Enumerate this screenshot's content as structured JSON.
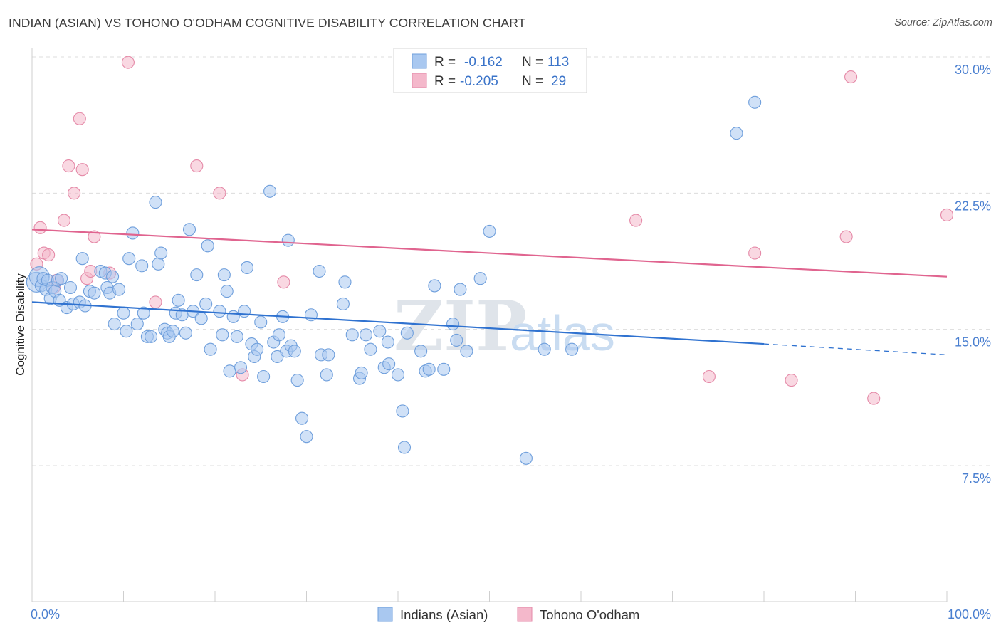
{
  "header": {
    "title": "INDIAN (ASIAN) VS TOHONO O'ODHAM COGNITIVE DISABILITY CORRELATION CHART",
    "source": "Source: ZipAtlas.com"
  },
  "watermark": {
    "zip": "ZIP",
    "atlas": "atlas"
  },
  "legend": {
    "r_label": "R =",
    "n_label": "N =",
    "rows": [
      {
        "r": "-0.162",
        "n": "113",
        "color": "#a9c8f0"
      },
      {
        "r": "-0.205",
        "n": "29",
        "color": "#f4b8cb"
      }
    ]
  },
  "colors": {
    "blue_fill": "#a9c8f0",
    "blue_stroke": "#6f9fdc",
    "blue_line": "#2f72d0",
    "pink_fill": "#f4b8cb",
    "pink_stroke": "#e58aa8",
    "pink_line": "#e0648f",
    "grid": "#dcdcdc",
    "axis_text": "#4a7fd0"
  },
  "chart_data": {
    "type": "scatter",
    "title": "INDIAN (ASIAN) VS TOHONO O'ODHAM COGNITIVE DISABILITY CORRELATION CHART",
    "xlabel": "",
    "ylabel": "Cognitive Disability",
    "xlim": [
      0,
      100
    ],
    "ylim": [
      0,
      31
    ],
    "x_tick_labels": [
      "0.0%",
      "100.0%"
    ],
    "y_ticks": [
      7.5,
      15.0,
      22.5,
      30.0
    ],
    "y_tick_labels": [
      "7.5%",
      "15.0%",
      "22.5%",
      "30.0%"
    ],
    "grid": true,
    "legend_position": "top-center",
    "series": [
      {
        "name": "Indians (Asian)",
        "r": -0.162,
        "n": 113,
        "trend": {
          "x": [
            0,
            80
          ],
          "y": [
            16.5,
            14.2
          ],
          "dashed_to": [
            100,
            13.6
          ]
        },
        "points": [
          [
            0.5,
            17.6
          ],
          [
            0.8,
            17.9
          ],
          [
            1.0,
            17.4
          ],
          [
            1.2,
            17.8
          ],
          [
            1.5,
            17.2
          ],
          [
            1.7,
            17.7
          ],
          [
            2.0,
            16.7
          ],
          [
            2.2,
            17.3
          ],
          [
            2.5,
            17.1
          ],
          [
            2.8,
            17.7
          ],
          [
            3.0,
            16.6
          ],
          [
            3.2,
            17.8
          ],
          [
            3.8,
            16.2
          ],
          [
            4.2,
            17.3
          ],
          [
            4.5,
            16.4
          ],
          [
            5.2,
            16.5
          ],
          [
            5.5,
            18.9
          ],
          [
            5.8,
            16.3
          ],
          [
            6.3,
            17.1
          ],
          [
            6.8,
            17.0
          ],
          [
            7.5,
            18.2
          ],
          [
            8.0,
            18.1
          ],
          [
            8.2,
            17.3
          ],
          [
            8.5,
            17.0
          ],
          [
            8.8,
            17.9
          ],
          [
            9.0,
            15.3
          ],
          [
            9.5,
            17.2
          ],
          [
            10.0,
            15.9
          ],
          [
            10.3,
            14.9
          ],
          [
            10.6,
            18.9
          ],
          [
            11.0,
            20.3
          ],
          [
            11.5,
            15.3
          ],
          [
            12.0,
            18.5
          ],
          [
            12.2,
            15.9
          ],
          [
            12.6,
            14.6
          ],
          [
            13.0,
            14.6
          ],
          [
            13.5,
            22.0
          ],
          [
            13.8,
            18.6
          ],
          [
            14.1,
            19.2
          ],
          [
            14.5,
            15.0
          ],
          [
            14.8,
            14.8
          ],
          [
            15.0,
            14.6
          ],
          [
            15.4,
            14.9
          ],
          [
            15.7,
            15.9
          ],
          [
            16.0,
            16.6
          ],
          [
            16.4,
            15.8
          ],
          [
            16.8,
            14.8
          ],
          [
            17.2,
            20.5
          ],
          [
            17.6,
            16.0
          ],
          [
            18.0,
            18.0
          ],
          [
            18.5,
            15.6
          ],
          [
            19.0,
            16.4
          ],
          [
            19.2,
            19.6
          ],
          [
            19.5,
            13.9
          ],
          [
            20.5,
            16.0
          ],
          [
            20.8,
            14.7
          ],
          [
            21.0,
            18.0
          ],
          [
            21.3,
            17.1
          ],
          [
            21.6,
            12.7
          ],
          [
            22.0,
            15.7
          ],
          [
            22.4,
            14.6
          ],
          [
            22.8,
            12.9
          ],
          [
            23.2,
            16.0
          ],
          [
            23.5,
            18.4
          ],
          [
            24.0,
            14.2
          ],
          [
            24.3,
            13.5
          ],
          [
            24.6,
            13.9
          ],
          [
            25.0,
            15.4
          ],
          [
            25.3,
            12.4
          ],
          [
            26.0,
            22.6
          ],
          [
            26.4,
            14.3
          ],
          [
            26.8,
            13.5
          ],
          [
            27.0,
            14.7
          ],
          [
            27.4,
            15.7
          ],
          [
            27.8,
            13.8
          ],
          [
            28.0,
            19.9
          ],
          [
            28.3,
            14.1
          ],
          [
            28.7,
            13.8
          ],
          [
            29.0,
            12.2
          ],
          [
            29.5,
            10.1
          ],
          [
            30.0,
            9.1
          ],
          [
            30.5,
            15.8
          ],
          [
            31.4,
            18.2
          ],
          [
            31.6,
            13.6
          ],
          [
            32.2,
            12.5
          ],
          [
            32.4,
            13.6
          ],
          [
            34.0,
            16.4
          ],
          [
            34.2,
            17.6
          ],
          [
            35.0,
            14.7
          ],
          [
            35.8,
            12.3
          ],
          [
            36.0,
            12.6
          ],
          [
            36.5,
            14.7
          ],
          [
            37.0,
            13.9
          ],
          [
            38.0,
            14.9
          ],
          [
            38.5,
            12.9
          ],
          [
            38.9,
            14.3
          ],
          [
            39.0,
            13.1
          ],
          [
            40.0,
            12.5
          ],
          [
            40.5,
            10.5
          ],
          [
            40.7,
            8.5
          ],
          [
            41.0,
            14.8
          ],
          [
            42.5,
            13.8
          ],
          [
            43.0,
            12.7
          ],
          [
            43.4,
            12.8
          ],
          [
            44.0,
            17.4
          ],
          [
            45.0,
            12.8
          ],
          [
            46.0,
            15.3
          ],
          [
            46.4,
            14.4
          ],
          [
            46.8,
            17.2
          ],
          [
            47.5,
            13.8
          ],
          [
            49.0,
            17.8
          ],
          [
            50.0,
            20.4
          ],
          [
            54.0,
            7.9
          ],
          [
            56.0,
            13.9
          ],
          [
            59.0,
            13.9
          ],
          [
            77.0,
            25.8
          ],
          [
            79.0,
            27.5
          ]
        ]
      },
      {
        "name": "Tohono O'odham",
        "r": -0.205,
        "n": 29,
        "trend": {
          "x": [
            0,
            100
          ],
          "y": [
            20.5,
            17.9
          ]
        },
        "points": [
          [
            0.5,
            18.6
          ],
          [
            0.9,
            20.6
          ],
          [
            1.3,
            19.2
          ],
          [
            1.8,
            19.1
          ],
          [
            2.4,
            17.3
          ],
          [
            2.7,
            17.7
          ],
          [
            3.5,
            21.0
          ],
          [
            4.0,
            24.0
          ],
          [
            4.6,
            22.5
          ],
          [
            5.2,
            26.6
          ],
          [
            5.5,
            23.8
          ],
          [
            6.0,
            17.8
          ],
          [
            6.4,
            18.2
          ],
          [
            6.8,
            20.1
          ],
          [
            8.5,
            18.1
          ],
          [
            10.5,
            29.7
          ],
          [
            13.5,
            16.5
          ],
          [
            18.0,
            24.0
          ],
          [
            20.5,
            22.5
          ],
          [
            23.0,
            12.5
          ],
          [
            27.5,
            17.6
          ],
          [
            66.0,
            21.0
          ],
          [
            74.0,
            12.4
          ],
          [
            79.0,
            19.2
          ],
          [
            83.0,
            12.2
          ],
          [
            89.0,
            20.1
          ],
          [
            89.5,
            28.9
          ],
          [
            92.0,
            11.2
          ],
          [
            100.0,
            21.3
          ]
        ]
      }
    ]
  },
  "bottom_legend": {
    "items": [
      {
        "label": "Indians (Asian)",
        "color": "#a9c8f0"
      },
      {
        "label": "Tohono O'odham",
        "color": "#f4b8cb"
      }
    ]
  }
}
